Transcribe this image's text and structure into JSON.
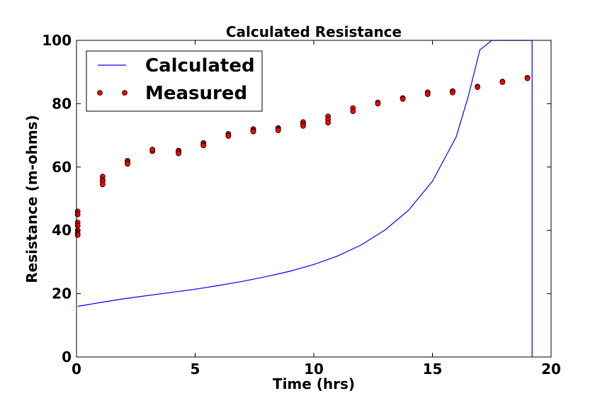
{
  "chart_data": {
    "type": "line",
    "title": "Calculated Resistance",
    "xlabel": "Time (hrs)",
    "ylabel": "Resistance (m-ohms)",
    "xlim": [
      0,
      20
    ],
    "ylim": [
      0,
      100
    ],
    "x_ticks": [
      0,
      5,
      10,
      15,
      20
    ],
    "y_ticks": [
      0,
      20,
      40,
      60,
      80,
      100
    ],
    "x_tick_labels": [
      "0",
      "5",
      "10",
      "15",
      "20"
    ],
    "y_tick_labels": [
      "0",
      "20",
      "40",
      "60",
      "80",
      "100"
    ],
    "grid": false,
    "legend_position": "top-left",
    "series": [
      {
        "name": "Calculated",
        "kind": "line",
        "color": "#0000ff",
        "x": [
          0.05,
          1,
          2,
          3,
          4,
          5,
          6,
          7,
          8,
          9,
          10,
          11,
          12,
          13,
          14,
          15,
          16,
          16.5,
          17,
          17.5,
          17.9,
          18.1,
          19.2,
          19.2
        ],
        "y": [
          16.0,
          17.2,
          18.4,
          19.4,
          20.4,
          21.4,
          22.6,
          23.9,
          25.4,
          27.1,
          29.2,
          31.9,
          35.4,
          40.1,
          46.4,
          55.5,
          69.5,
          82.0,
          97.0,
          100.0,
          100.0,
          100.0,
          100.0,
          0.0
        ]
      },
      {
        "name": "Measured",
        "kind": "scatter",
        "color": "#ff0000",
        "edge_color": "#000000",
        "x": [
          0.05,
          0.05,
          0.05,
          0.05,
          0.05,
          0.05,
          0.05,
          1.1,
          1.1,
          1.1,
          1.1,
          2.15,
          2.15,
          2.15,
          3.2,
          3.2,
          3.2,
          4.3,
          4.3,
          4.3,
          5.35,
          5.35,
          5.35,
          6.4,
          6.4,
          6.4,
          7.45,
          7.45,
          7.45,
          8.5,
          8.5,
          8.5,
          9.55,
          9.55,
          9.55,
          10.6,
          10.6,
          10.6,
          11.65,
          11.65,
          12.7,
          12.7,
          13.75,
          13.75,
          14.8,
          14.8,
          15.85,
          15.85,
          16.9,
          16.9,
          17.95,
          17.95,
          19.0,
          19.0
        ],
        "y": [
          46.0,
          45.0,
          42.5,
          41.5,
          40.0,
          39.0,
          38.5,
          57.0,
          56.0,
          55.5,
          54.5,
          62.0,
          61.5,
          61.0,
          65.5,
          65.0,
          65.5,
          65.2,
          64.8,
          64.3,
          67.6,
          67.2,
          66.8,
          70.5,
          70.0,
          69.8,
          72.0,
          71.5,
          71.2,
          72.3,
          72.0,
          71.6,
          74.2,
          73.6,
          73.0,
          76.0,
          75.0,
          74.0,
          78.6,
          77.6,
          80.4,
          80.0,
          81.8,
          81.5,
          83.6,
          83.0,
          84.0,
          83.5,
          85.4,
          85.2,
          87.0,
          86.8,
          88.2,
          88.0
        ]
      }
    ]
  }
}
